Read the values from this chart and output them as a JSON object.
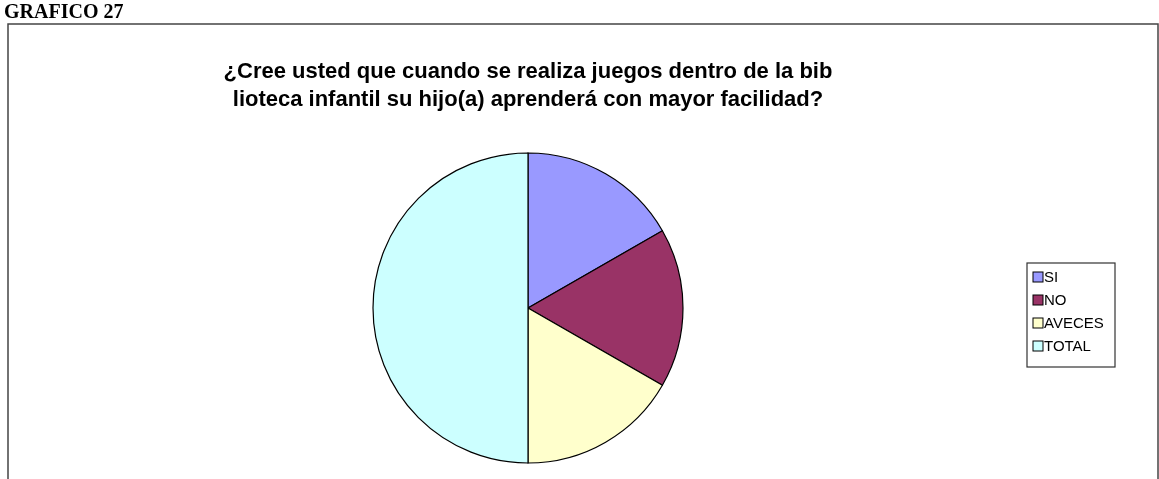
{
  "chart_data": {
    "type": "pie",
    "title": "¿Cree usted que cuando se realiza juegos dentro de la bib\nlioteca infantil  su hijo(a) aprenderá con mayor facilidad?",
    "annotations": [
      "GRAFICO 27"
    ],
    "categories": [
      "SI",
      "NO",
      "AVECES",
      "TOTAL"
    ],
    "values": [
      16.7,
      16.6,
      16.7,
      50
    ],
    "colors": [
      "#9999ff",
      "#993366",
      "#ffffcc",
      "#ccffff"
    ],
    "legend": "right"
  }
}
